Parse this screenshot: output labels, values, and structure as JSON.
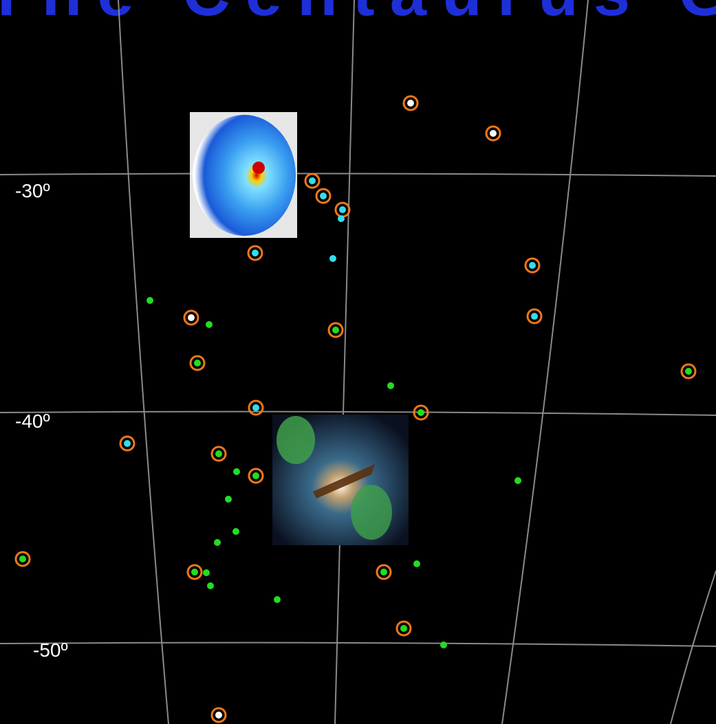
{
  "header": {
    "title": "The Centaurus Group"
  },
  "dec_labels": [
    "-30º",
    "-40º",
    "-50º"
  ]
}
